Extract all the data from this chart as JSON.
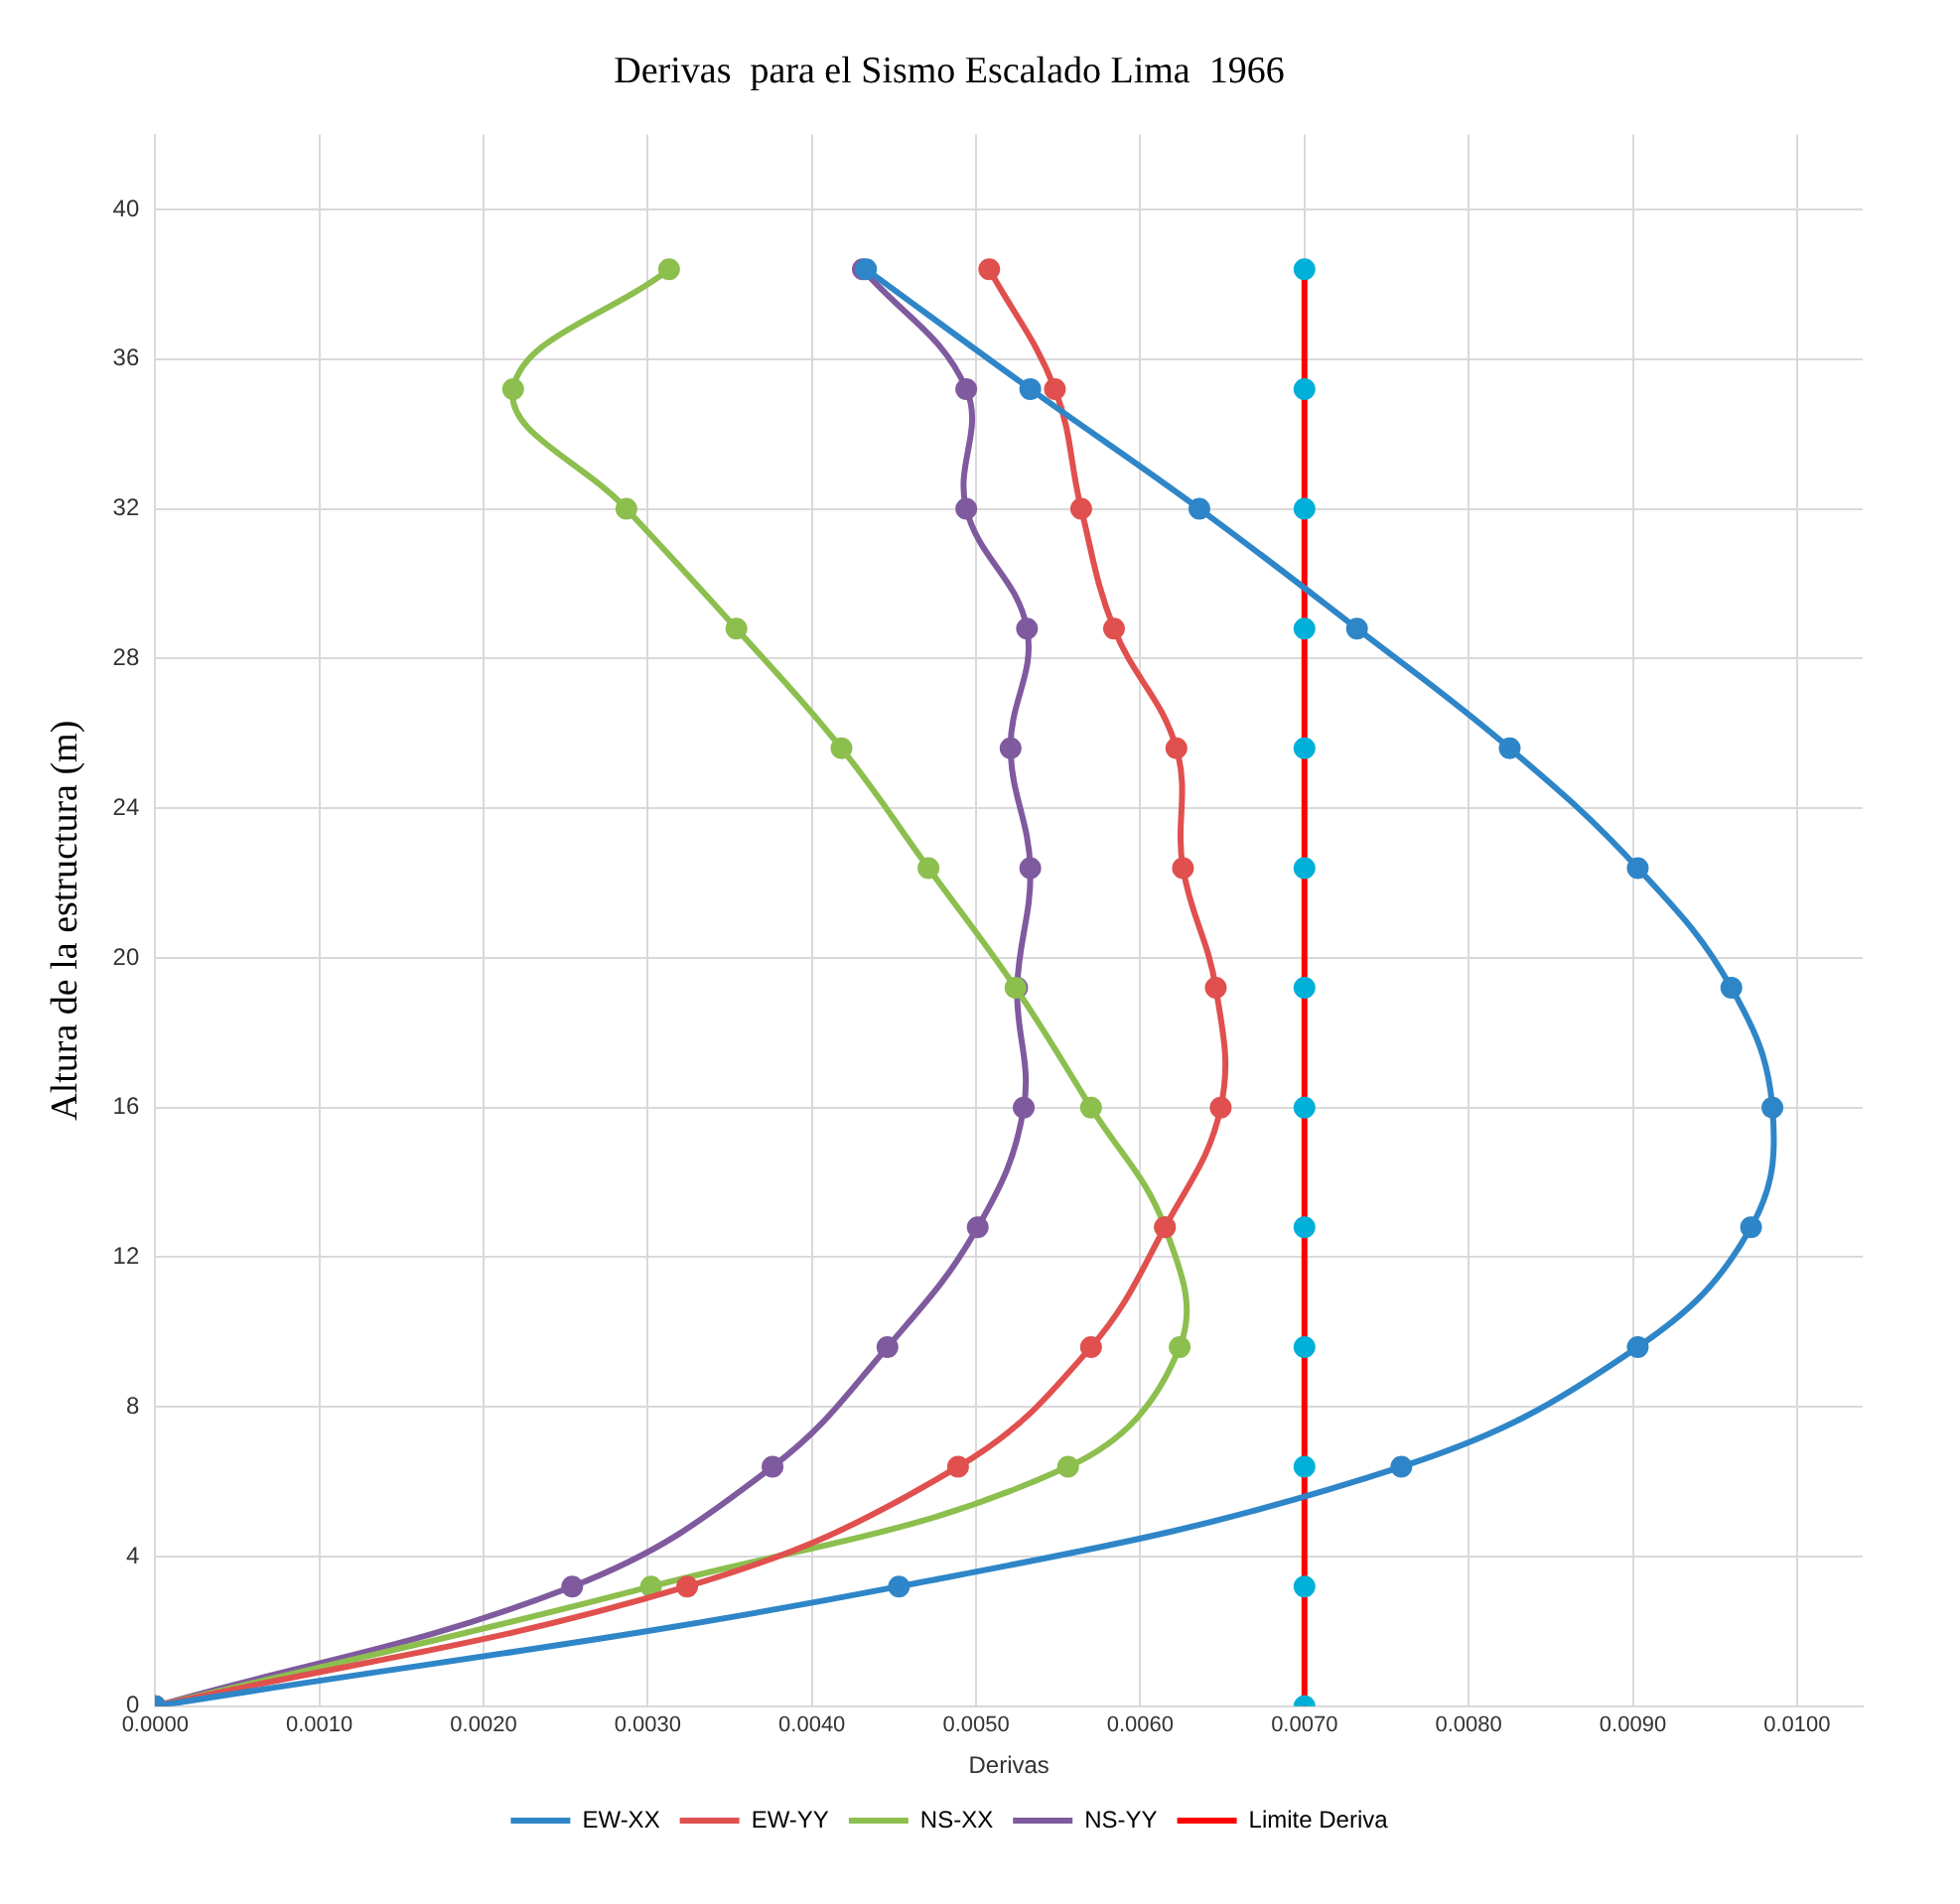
{
  "chart_data": {
    "type": "line",
    "title": "Derivas  para el Sismo Escalado Lima  1966",
    "xlabel": "Derivas",
    "ylabel": "Altura de la estructura (m)",
    "xlim": [
      0,
      0.0104
    ],
    "xticks": [
      {
        "value": 0,
        "label": "0.0000"
      },
      {
        "value": 0.001,
        "label": "0.0010"
      },
      {
        "value": 0.002,
        "label": "0.0020"
      },
      {
        "value": 0.003,
        "label": "0.0030"
      },
      {
        "value": 0.004,
        "label": "0.0040"
      },
      {
        "value": 0.005,
        "label": "0.0050"
      },
      {
        "value": 0.006,
        "label": "0.0060"
      },
      {
        "value": 0.007,
        "label": "0.0070"
      },
      {
        "value": 0.008,
        "label": "0.0080"
      },
      {
        "value": 0.009,
        "label": "0.0090"
      },
      {
        "value": 0.01,
        "label": "0.0100"
      }
    ],
    "ylim": [
      0,
      42
    ],
    "yticks": [
      0,
      4,
      8,
      12,
      16,
      20,
      24,
      28,
      32,
      36,
      40
    ],
    "grid": true,
    "legend": "bottom",
    "marker": "circle",
    "line_style": "solid",
    "series": [
      {
        "name": "EW-XX",
        "color": "#2e86c8",
        "x": [
          0,
          0.00453,
          0.00759,
          0.00903,
          0.00972,
          0.00985,
          0.0096,
          0.00903,
          0.00825,
          0.00732,
          0.00636,
          0.00533,
          0.00433
        ],
        "values": [
          0,
          3.2,
          6.4,
          9.6,
          12.8,
          16,
          19.2,
          22.4,
          25.6,
          28.8,
          32,
          35.2,
          38.4
        ]
      },
      {
        "name": "EW-YY",
        "color": "#e0504e",
        "x": [
          0,
          0.00324,
          0.00489,
          0.0057,
          0.00615,
          0.00649,
          0.00646,
          0.00626,
          0.00622,
          0.00584,
          0.00564,
          0.00548,
          0.00508
        ],
        "values": [
          0,
          3.2,
          6.4,
          9.6,
          12.8,
          16,
          19.2,
          22.4,
          25.6,
          28.8,
          32,
          35.2,
          38.4
        ]
      },
      {
        "name": "NS-XX",
        "color": "#8cbf4e",
        "x": [
          0,
          0.00302,
          0.00556,
          0.00624,
          0.00615,
          0.0057,
          0.00524,
          0.00471,
          0.00418,
          0.00354,
          0.00287,
          0.00218,
          0.00313
        ],
        "values": [
          0,
          3.2,
          6.4,
          9.6,
          12.8,
          16,
          19.2,
          22.4,
          25.6,
          28.8,
          32,
          35.2,
          38.4
        ]
      },
      {
        "name": "NS-YY",
        "color": "#7f5a9e",
        "x": [
          0,
          0.00254,
          0.00376,
          0.00446,
          0.00501,
          0.00529,
          0.00525,
          0.00533,
          0.00521,
          0.00531,
          0.00494,
          0.00494,
          0.00431
        ],
        "values": [
          0,
          3.2,
          6.4,
          9.6,
          12.8,
          16,
          19.2,
          22.4,
          25.6,
          28.8,
          32,
          35.2,
          38.4
        ]
      },
      {
        "name": "Limite Deriva",
        "color": "#ff0000",
        "colors": [
          "#00b0d8",
          "#00b0d8",
          "#00b0d8",
          "#00b0d8",
          "#00b0d8",
          "#00b0d8",
          "#00b0d8",
          "#00b0d8",
          "#00b0d8",
          "#00b0d8",
          "#00b0d8",
          "#00b0d8",
          "#00b0d8"
        ],
        "x": [
          0.007,
          0.007,
          0.007,
          0.007,
          0.007,
          0.007,
          0.007,
          0.007,
          0.007,
          0.007,
          0.007,
          0.007,
          0.007
        ],
        "values": [
          0,
          3.2,
          6.4,
          9.6,
          12.8,
          16,
          19.2,
          22.4,
          25.6,
          28.8,
          32,
          35.2,
          38.4
        ]
      }
    ]
  }
}
